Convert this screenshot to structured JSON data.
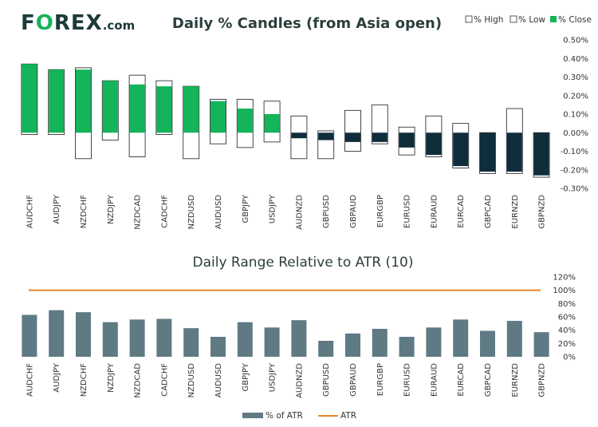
{
  "logo": {
    "part1": "F",
    "part2": "O",
    "part3": "REX",
    "domain": ".com"
  },
  "chart_data": [
    {
      "type": "candlestick",
      "title": "Daily % Candles (from Asia open)",
      "legend": [
        "% High",
        "% Low",
        "% Close"
      ],
      "colors": {
        "up": "#13b45a",
        "down": "#0f2d3a",
        "range": "#ffffff",
        "outline": "#333333"
      },
      "ylim": [
        -0.3,
        0.5
      ],
      "yticks": [
        "0.50%",
        "0.40%",
        "0.30%",
        "0.20%",
        "0.10%",
        "0.00%",
        "-0.10%",
        "-0.20%",
        "-0.30%"
      ],
      "yticks_values": [
        0.5,
        0.4,
        0.3,
        0.2,
        0.1,
        0.0,
        -0.1,
        -0.2,
        -0.3
      ],
      "categories": [
        "AUDCHF",
        "AUDJPY",
        "NZDCHF",
        "NZDJPY",
        "NZDCAD",
        "CADCHF",
        "NZDUSD",
        "AUDUSD",
        "GBPJPY",
        "USDJPY",
        "AUDNZD",
        "GBPUSD",
        "GBPAUD",
        "EURGBP",
        "EURUSD",
        "EURAUD",
        "EURCAD",
        "GBPCAD",
        "EURNZD",
        "GBPNZD"
      ],
      "high": [
        0.37,
        0.34,
        0.35,
        0.28,
        0.31,
        0.28,
        0.25,
        0.18,
        0.18,
        0.17,
        0.09,
        0.01,
        0.12,
        0.15,
        0.03,
        0.09,
        0.05,
        0.0,
        0.13,
        0.0
      ],
      "low": [
        -0.01,
        -0.01,
        -0.14,
        -0.04,
        -0.13,
        -0.01,
        -0.14,
        -0.06,
        -0.08,
        -0.05,
        -0.14,
        -0.14,
        -0.1,
        -0.06,
        -0.12,
        -0.13,
        -0.19,
        -0.22,
        -0.22,
        -0.24
      ],
      "close": [
        0.37,
        0.34,
        0.34,
        0.28,
        0.26,
        0.25,
        0.25,
        0.17,
        0.13,
        0.1,
        -0.03,
        -0.04,
        -0.05,
        -0.05,
        -0.08,
        -0.12,
        -0.18,
        -0.21,
        -0.21,
        -0.23
      ]
    },
    {
      "type": "bar",
      "title": "Daily Range Relative to ATR (10)",
      "legend": [
        "% of ATR",
        "ATR"
      ],
      "colors": {
        "bar": "#5f7a83",
        "atr": "#e8862a"
      },
      "ylim": [
        0,
        120
      ],
      "yticks": [
        "120%",
        "100%",
        "80%",
        "60%",
        "40%",
        "20%",
        "0%"
      ],
      "yticks_values": [
        120,
        100,
        80,
        60,
        40,
        20,
        0
      ],
      "atr_level": 100,
      "categories": [
        "AUDCHF",
        "AUDJPY",
        "NZDCHF",
        "NZDJPY",
        "NZDCAD",
        "CADCHF",
        "NZDUSD",
        "AUDUSD",
        "GBPJPY",
        "USDJPY",
        "AUDNZD",
        "GBPUSD",
        "GBPAUD",
        "EURGBP",
        "EURUSD",
        "EURAUD",
        "EURCAD",
        "GBPCAD",
        "EURNZD",
        "GBPNZD"
      ],
      "values": [
        63,
        70,
        67,
        52,
        56,
        57,
        43,
        30,
        52,
        44,
        55,
        24,
        35,
        42,
        30,
        44,
        56,
        39,
        54,
        37
      ]
    }
  ]
}
